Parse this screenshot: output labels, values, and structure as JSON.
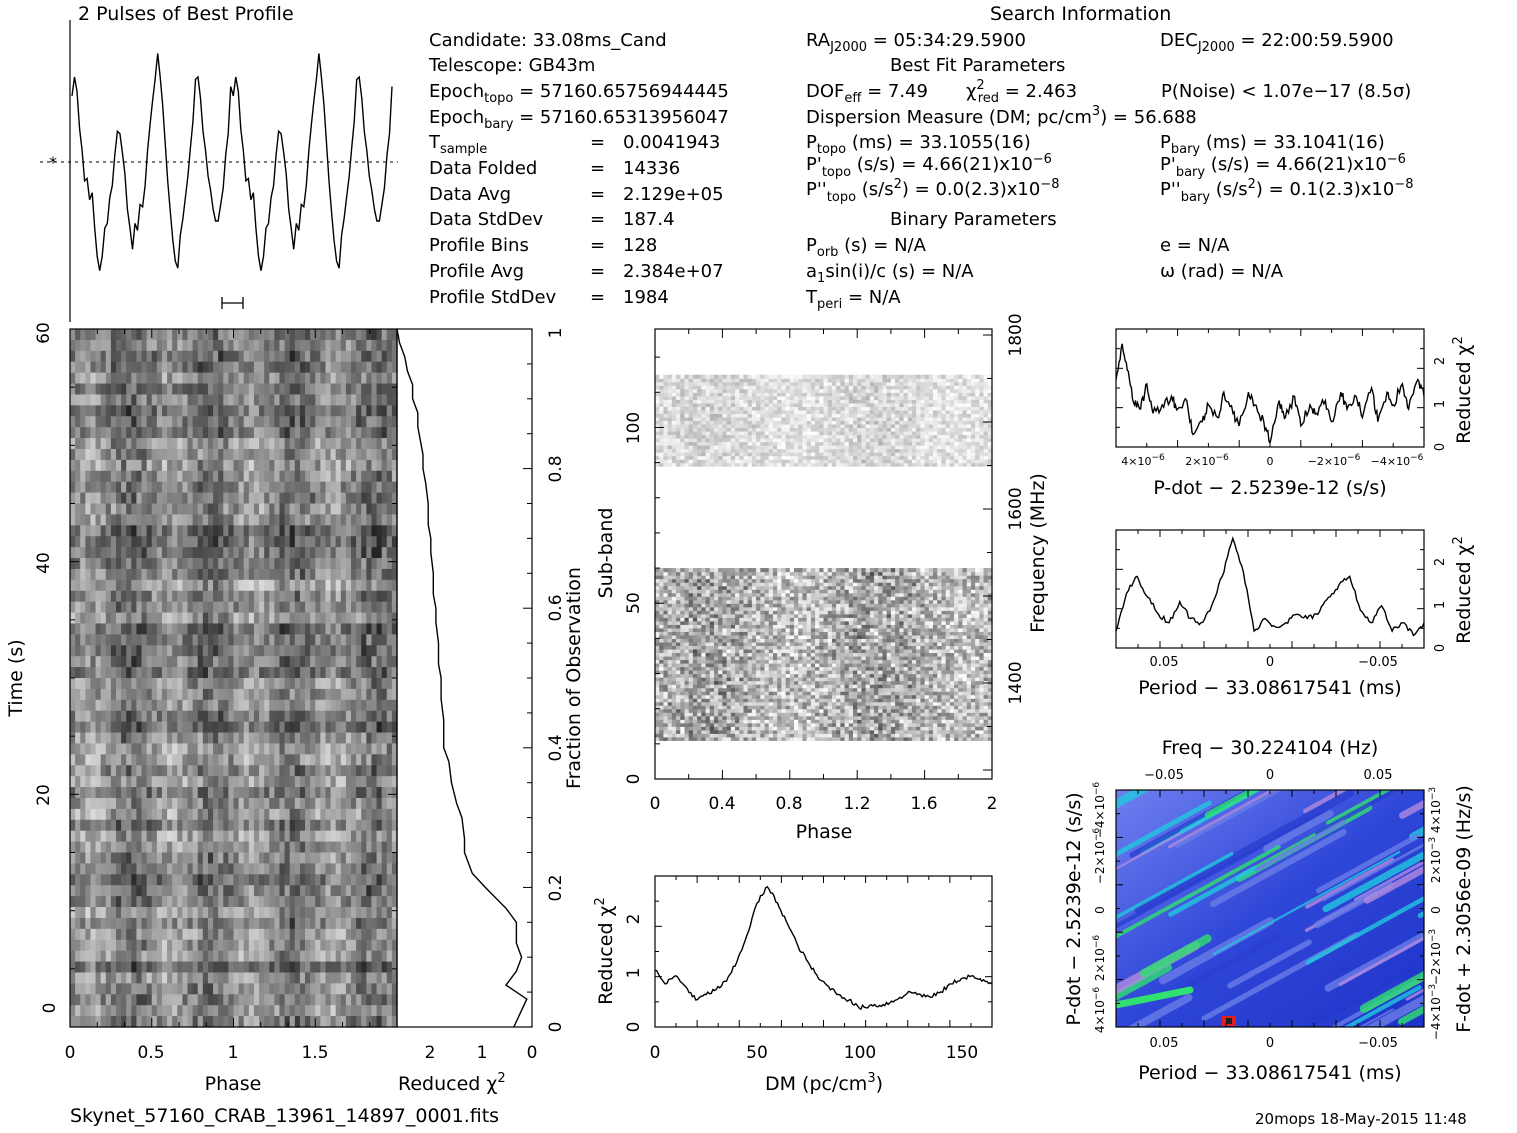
{
  "footer": {
    "filename": "Skynet_57160_CRAB_13961_14897_0001.fits",
    "stamp": "20mops 18-May-2015 11:48"
  },
  "search_info": {
    "title": "Search Information",
    "candidate": "Candidate:  33.08ms_Cand",
    "telescope": "Telescope:  GB43m",
    "epoch_topo_lbl": "Epoch",
    "epoch_topo_sub": "topo",
    "epoch_topo_val": " = 57160.65756944445",
    "epoch_bary_lbl": "Epoch",
    "epoch_bary_sub": "bary",
    "epoch_bary_val": " = 57160.65313956047",
    "tsample_lbl": "T",
    "tsample_sub": "sample",
    "tsample_val": "0.0041943",
    "data_folded_lbl": "Data Folded",
    "data_folded_val": "14336",
    "data_avg_lbl": "Data Avg",
    "data_avg_val": "2.129e+05",
    "data_std_lbl": "Data StdDev",
    "data_std_val": "187.4",
    "prof_bins_lbl": "Profile Bins",
    "prof_bins_val": "128",
    "prof_avg_lbl": "Profile Avg",
    "prof_avg_val": "2.384e+07",
    "prof_std_lbl": "Profile StdDev",
    "prof_std_val": "1984",
    "eq": "=",
    "ra_lbl": "RA",
    "ra_sub": "J2000",
    "ra_val": " = 05:34:29.5900",
    "dec_lbl": "DEC",
    "dec_sub": "J2000",
    "dec_val": " = 22:00:59.5900",
    "best_fit": "Best Fit Parameters",
    "dof_lbl": "DOF",
    "dof_sub": "eff",
    "dof_val": " = 7.49",
    "chi_lbl": "χ",
    "chi_sup": "2",
    "chi_sub": "red",
    "chi_val": " = 2.463",
    "pnoise": "P(Noise) < 1.07e−17   (8.5σ)",
    "dm_line_a": "Dispersion Measure (DM; pc/cm",
    "dm_line_sup": "3",
    "dm_line_b": ") = 56.688",
    "ptopo_lbl": "P",
    "ptopo_sub": "topo",
    "ptopo_val": " (ms) =  33.1055(16)",
    "pbary_lbl": "P",
    "pbary_sub": "bary",
    "pbary_val": " (ms) =  33.1041(16)",
    "pdtopo_lbl": "P'",
    "pdtopo_sub": "topo",
    "pdtopo_val": " (s/s) =  4.66(21)x10",
    "pdtopo_exp": "−6",
    "pdbary_lbl": "P'",
    "pdbary_sub": "bary",
    "pdbary_val": " (s/s) =  4.66(21)x10",
    "pdbary_exp": "−6",
    "pddtopo_lbl": "P''",
    "pddtopo_sub": "topo",
    "pddtopo_val_a": " (s/s",
    "pddtopo_val_sup": "2",
    "pddtopo_val_b": ") = 0.0(2.3)x10",
    "pddtopo_exp": "−8",
    "pddbary_lbl": "P''",
    "pddbary_sub": "bary",
    "pddbary_val_a": " (s/s",
    "pddbary_val_sup": "2",
    "pddbary_val_b": ") =  0.1(2.3)x10",
    "pddbary_exp": "−8",
    "binary": "Binary Parameters",
    "porb_lbl": "P",
    "porb_sub": "orb",
    "porb_val": " (s) = N/A",
    "e_val": "e = N/A",
    "a1_lbl": "a",
    "a1_sub": "1",
    "a1_val": "sin(i)/c (s) = N/A",
    "omega_val": "ω (rad) = N/A",
    "tperi_lbl": "T",
    "tperi_sub": "peri",
    "tperi_val": " = N/A"
  },
  "labels": {
    "profile_title": "2 Pulses of Best Profile",
    "time_axis": "Time (s)",
    "phase": "Phase",
    "reduced": "Reduced ",
    "chi": "χ",
    "two": "2",
    "fraction": "Fraction of Observation",
    "subband": "Sub-band",
    "frequency": "Frequency (MHz)",
    "dm_axis_a": "DM (pc/cm",
    "dm_axis_sup": "3",
    "dm_axis_b": ")",
    "pdot_axis": "P-dot − 2.5239e-12 (s/s)",
    "period_axis": "Period − 33.08617541 (ms)",
    "freq_axis": "Freq − 30.224104 (Hz)",
    "fdot_axis": "F-dot + 2.3056e-09 (Hz/s)"
  },
  "chart_data": [
    {
      "id": "pulse_profile",
      "type": "line",
      "title": "2 Pulses of Best Profile",
      "x_range": [
        0,
        2
      ],
      "values": [
        0.78,
        0.86,
        0.8,
        0.64,
        0.55,
        0.42,
        0.43,
        0.34,
        0.37,
        0.22,
        0.1,
        0.04,
        0.1,
        0.22,
        0.24,
        0.35,
        0.4,
        0.53,
        0.63,
        0.62,
        0.54,
        0.45,
        0.3,
        0.22,
        0.13,
        0.24,
        0.21,
        0.32,
        0.31,
        0.4,
        0.55,
        0.66,
        0.76,
        0.85,
        0.96,
        0.86,
        0.74,
        0.58,
        0.42,
        0.29,
        0.17,
        0.08,
        0.05,
        0.19,
        0.26,
        0.35,
        0.44,
        0.56,
        0.67,
        0.85,
        0.86,
        0.77,
        0.63,
        0.55,
        0.44,
        0.38,
        0.3,
        0.25,
        0.25,
        0.32,
        0.39,
        0.53,
        0.62,
        0.82,
        0.78,
        0.86,
        0.8,
        0.64,
        0.55,
        0.42,
        0.43,
        0.34,
        0.37,
        0.22,
        0.1,
        0.04,
        0.1,
        0.22,
        0.24,
        0.35,
        0.4,
        0.53,
        0.63,
        0.62,
        0.54,
        0.45,
        0.3,
        0.22,
        0.13,
        0.24,
        0.21,
        0.32,
        0.31,
        0.4,
        0.55,
        0.66,
        0.76,
        0.85,
        0.96,
        0.86,
        0.74,
        0.58,
        0.42,
        0.29,
        0.17,
        0.08,
        0.05,
        0.19,
        0.26,
        0.35,
        0.44,
        0.56,
        0.67,
        0.85,
        0.86,
        0.77,
        0.63,
        0.55,
        0.44,
        0.38,
        0.3,
        0.25,
        0.25,
        0.32,
        0.39,
        0.53,
        0.62,
        0.82
      ]
    },
    {
      "id": "time_phase",
      "type": "heatmap",
      "xlabel": "Phase",
      "ylabel": "Time (s)",
      "xlim": [
        0,
        2
      ],
      "ylim": [
        0,
        60
      ],
      "x_ticks": [
        "0",
        "0.5",
        "1",
        "1.5"
      ],
      "y_ticks": [
        "0",
        "20",
        "40",
        "60"
      ]
    },
    {
      "id": "chi_vs_fraction",
      "type": "line",
      "xlabel": "Reduced χ2",
      "ylabel": "Fraction of Observation",
      "xlim": [
        2.6,
        0
      ],
      "ylim": [
        0,
        1
      ],
      "x_ticks": [
        "2",
        "1",
        "0"
      ],
      "y_ticks": [
        "0",
        "0.2",
        "0.4",
        "0.6",
        "0.8",
        "1"
      ],
      "x": [
        0.35,
        0.1,
        0.5,
        0.3,
        0.2,
        0.3,
        0.3,
        0.5,
        0.9,
        1.15,
        1.3,
        1.3,
        1.35,
        1.45,
        1.55,
        1.6,
        1.7,
        1.7,
        1.7,
        1.75,
        1.75,
        1.8,
        1.8,
        1.85,
        1.85,
        1.9,
        1.9,
        1.95,
        1.95,
        2.0,
        2.0,
        2.05,
        2.1,
        2.1,
        2.15,
        2.2,
        2.2,
        2.3,
        2.3,
        2.4,
        2.45,
        2.5,
        2.55,
        2.6
      ],
      "y": [
        0.0,
        0.04,
        0.06,
        0.08,
        0.1,
        0.12,
        0.15,
        0.17,
        0.2,
        0.22,
        0.25,
        0.27,
        0.3,
        0.32,
        0.35,
        0.38,
        0.4,
        0.42,
        0.44,
        0.47,
        0.5,
        0.52,
        0.55,
        0.58,
        0.6,
        0.62,
        0.65,
        0.68,
        0.7,
        0.72,
        0.75,
        0.78,
        0.8,
        0.82,
        0.84,
        0.86,
        0.88,
        0.9,
        0.92,
        0.94,
        0.96,
        0.97,
        0.98,
        1.0
      ]
    },
    {
      "id": "subband_phase",
      "type": "heatmap",
      "xlabel": "Phase",
      "ylabel": "Sub-band",
      "y2label": "Frequency (MHz)",
      "xlim": [
        0,
        2
      ],
      "ylim": [
        0,
        128
      ],
      "x_ticks": [
        "0",
        "0.4",
        "0.8",
        "1.2",
        "1.6",
        "2"
      ],
      "y_ticks": [
        "0",
        "50",
        "100"
      ],
      "y2_ticks": [
        "1400",
        "1600",
        "1800"
      ],
      "bands": [
        [
          11,
          60
        ],
        [
          89,
          115
        ]
      ]
    },
    {
      "id": "chi_vs_dm",
      "type": "line",
      "xlabel": "DM (pc/cm3)",
      "ylabel": "Reduced χ2",
      "xlim": [
        0,
        165
      ],
      "ylim": [
        0,
        2.8
      ],
      "x_ticks": [
        "0",
        "50",
        "100",
        "150"
      ],
      "y_ticks": [
        "0",
        "1",
        "2"
      ],
      "x": [
        0,
        5,
        10,
        15,
        20,
        25,
        30,
        35,
        40,
        45,
        50,
        55,
        60,
        65,
        70,
        75,
        80,
        85,
        90,
        95,
        100,
        105,
        110,
        115,
        120,
        125,
        130,
        135,
        140,
        145,
        150,
        155,
        160,
        165
      ],
      "y": [
        1.05,
        0.8,
        0.95,
        0.75,
        0.5,
        0.6,
        0.7,
        0.85,
        1.2,
        1.7,
        2.3,
        2.6,
        2.3,
        1.9,
        1.5,
        1.2,
        0.9,
        0.75,
        0.6,
        0.5,
        0.35,
        0.4,
        0.4,
        0.45,
        0.55,
        0.65,
        0.6,
        0.55,
        0.65,
        0.8,
        0.9,
        0.95,
        0.85,
        0.8
      ]
    },
    {
      "id": "chi_vs_pdot",
      "type": "line",
      "xlabel": "P-dot − 2.5239e-12 (s/s)",
      "ylabel": "Reduced χ2",
      "xlim": [
        5e-06,
        -5e-06
      ],
      "ylim": [
        0,
        2.8
      ],
      "x_ticks": [
        "4×10−6",
        "2×10−6",
        "0",
        "−2×10−6",
        "−4×10−6"
      ],
      "y_ticks": [
        "0",
        "1",
        "2"
      ],
      "x": [
        5,
        4.8,
        4.6,
        4.4,
        4.2,
        4.0,
        3.8,
        3.5,
        3.2,
        3.0,
        2.7,
        2.5,
        2.2,
        2.0,
        1.7,
        1.5,
        1.2,
        1.0,
        0.7,
        0.5,
        0.2,
        0.0,
        -0.3,
        -0.5,
        -0.8,
        -1.0,
        -1.3,
        -1.5,
        -1.8,
        -2.0,
        -2.3,
        -2.5,
        -2.8,
        -3.0,
        -3.3,
        -3.5,
        -3.8,
        -4.0,
        -4.3,
        -4.5,
        -4.8,
        -5.0
      ],
      "y": [
        1.6,
        2.45,
        1.8,
        1.0,
        0.9,
        1.5,
        0.8,
        1.0,
        1.2,
        0.9,
        1.1,
        0.3,
        0.6,
        1.0,
        0.7,
        1.3,
        0.8,
        0.5,
        1.3,
        1.0,
        0.6,
        0.1,
        1.1,
        0.7,
        1.2,
        0.5,
        1.0,
        0.8,
        1.1,
        0.6,
        1.3,
        0.9,
        1.2,
        0.7,
        1.4,
        0.6,
        1.3,
        1.0,
        1.5,
        0.9,
        1.6,
        1.2
      ],
      "xunit": 1e-06
    },
    {
      "id": "chi_vs_period",
      "type": "line",
      "xlabel": "Period − 33.08617541 (ms)",
      "ylabel": "Reduced χ2",
      "xlim": [
        0.075,
        -0.07
      ],
      "ylim": [
        0,
        2.8
      ],
      "x_ticks": [
        "0.05",
        "0",
        "−0.05"
      ],
      "y_ticks": [
        "0",
        "1",
        "2"
      ],
      "x": [
        0.075,
        0.07,
        0.065,
        0.06,
        0.055,
        0.05,
        0.045,
        0.04,
        0.035,
        0.03,
        0.025,
        0.02,
        0.015,
        0.01,
        0.005,
        0.0,
        -0.005,
        -0.01,
        -0.015,
        -0.02,
        -0.025,
        -0.03,
        -0.035,
        -0.04,
        -0.045,
        -0.05,
        -0.055,
        -0.06,
        -0.065,
        -0.07
      ],
      "y": [
        0.4,
        1.3,
        1.7,
        1.2,
        0.8,
        0.6,
        1.1,
        0.7,
        0.6,
        1.0,
        1.7,
        2.6,
        1.8,
        0.4,
        0.7,
        0.5,
        0.6,
        0.8,
        0.7,
        0.8,
        1.2,
        1.5,
        1.7,
        0.9,
        0.6,
        1.0,
        0.4,
        0.6,
        0.3,
        0.6
      ]
    },
    {
      "id": "pdot_period_plane",
      "type": "heatmap",
      "title": "Freq − 30.224104 (Hz)",
      "xlabel": "Period − 33.08617541 (ms)",
      "ylabel": "P-dot − 2.5239e-12 (s/s)",
      "y2label": "F-dot + 2.3056e-09 (Hz/s)",
      "x_ticks": [
        "0.05",
        "0",
        "−0.05"
      ],
      "top_ticks": [
        "−0.05",
        "0",
        "0.05"
      ],
      "y_ticks": [
        "4×10−6",
        "2×10−6",
        "0",
        "−2×10−6",
        "−4×10−6"
      ],
      "y2_ticks": [
        "−4×10−3",
        "−2×10−3",
        "0",
        "2×10−3",
        "4×10−3"
      ],
      "colors": [
        "#2a3fd0",
        "#6b7de8",
        "#b28ae0",
        "#20c8e0",
        "#30e070",
        "#e02020"
      ]
    }
  ]
}
